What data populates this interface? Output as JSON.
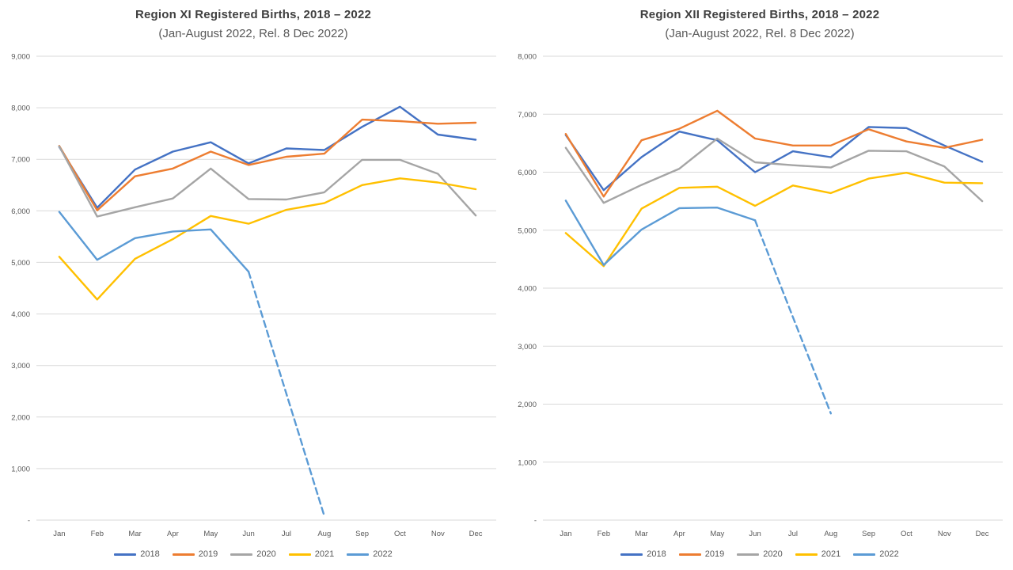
{
  "accent_colors": {
    "grid": "#D9D9D9",
    "axis_text": "#595959",
    "title_text": "#404040",
    "series_2018": "#4472C4",
    "series_2019": "#ED7D31",
    "series_2020": "#A5A5A5",
    "series_2021": "#FFC000",
    "series_2022": "#5B9BD5"
  },
  "chart_data": [
    {
      "type": "line",
      "title": "Region XI Registered Births, 2018 – 2022",
      "subtitle": "(Jan-August 2022, Rel. 8 Dec 2022)",
      "x": [
        "Jan",
        "Feb",
        "Mar",
        "Apr",
        "May",
        "Jun",
        "Jul",
        "Aug",
        "Sep",
        "Oct",
        "Nov",
        "Dec"
      ],
      "ylim": [
        0,
        9000
      ],
      "ytick_step": 1000,
      "ytick_labels": [
        "9,000",
        "8,000",
        "7,000",
        "6,000",
        "5,000",
        "4,000",
        "3,000",
        "2,000",
        "1,000",
        "-"
      ],
      "grid": "horizontal",
      "legend_position": "bottom",
      "series": [
        {
          "name": "2018",
          "color": "#4472C4",
          "values": [
            7240,
            6060,
            6800,
            7150,
            7330,
            6920,
            7210,
            7180,
            7630,
            8020,
            7480,
            7380
          ]
        },
        {
          "name": "2019",
          "color": "#ED7D31",
          "values": [
            7260,
            6010,
            6670,
            6820,
            7150,
            6890,
            7050,
            7110,
            7770,
            7740,
            7690,
            7710
          ]
        },
        {
          "name": "2020",
          "color": "#A5A5A5",
          "values": [
            7250,
            5890,
            6070,
            6240,
            6820,
            6230,
            6220,
            6360,
            6990,
            6990,
            6720,
            5910
          ]
        },
        {
          "name": "2021",
          "color": "#FFC000",
          "values": [
            5110,
            4280,
            5070,
            5450,
            5900,
            5750,
            6020,
            6150,
            6500,
            6630,
            6550,
            6420
          ]
        },
        {
          "name": "2022",
          "color": "#5B9BD5",
          "values": [
            5980,
            5050,
            5470,
            5600,
            5640,
            4820,
            2450,
            80,
            null,
            null,
            null,
            null
          ],
          "dashed_from_index": 5
        }
      ]
    },
    {
      "type": "line",
      "title": "Region XII Registered Births, 2018 – 2022",
      "subtitle": "(Jan-August 2022, Rel. 8 Dec 2022)",
      "x": [
        "Jan",
        "Feb",
        "Mar",
        "Apr",
        "May",
        "Jun",
        "Jul",
        "Aug",
        "Sep",
        "Oct",
        "Nov",
        "Dec"
      ],
      "ylim": [
        0,
        8000
      ],
      "ytick_step": 1000,
      "ytick_labels": [
        "8,000",
        "7,000",
        "6,000",
        "5,000",
        "4,000",
        "3,000",
        "2,000",
        "1,000",
        "-"
      ],
      "grid": "horizontal",
      "legend_position": "bottom",
      "series": [
        {
          "name": "2018",
          "color": "#4472C4",
          "values": [
            6640,
            5690,
            6260,
            6700,
            6550,
            6000,
            6360,
            6260,
            6780,
            6760,
            6460,
            6180
          ]
        },
        {
          "name": "2019",
          "color": "#ED7D31",
          "values": [
            6660,
            5580,
            6550,
            6750,
            7060,
            6580,
            6460,
            6460,
            6740,
            6530,
            6420,
            6560
          ]
        },
        {
          "name": "2020",
          "color": "#A5A5A5",
          "values": [
            6420,
            5470,
            5780,
            6060,
            6580,
            6170,
            6120,
            6080,
            6370,
            6360,
            6100,
            5500
          ]
        },
        {
          "name": "2021",
          "color": "#FFC000",
          "values": [
            4950,
            4380,
            5370,
            5730,
            5750,
            5420,
            5770,
            5640,
            5890,
            5990,
            5820,
            5810
          ]
        },
        {
          "name": "2022",
          "color": "#5B9BD5",
          "values": [
            5510,
            4400,
            5010,
            5380,
            5390,
            5170,
            3500,
            1840,
            null,
            null,
            null,
            null
          ],
          "dashed_from_index": 5
        }
      ]
    }
  ]
}
